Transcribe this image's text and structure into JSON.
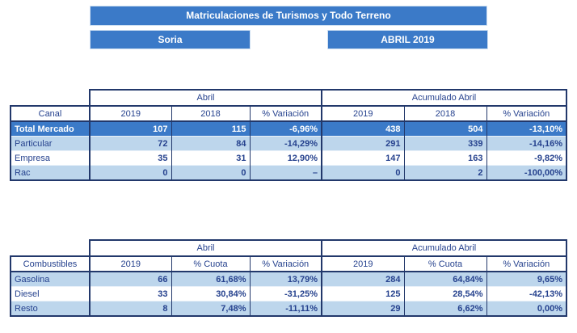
{
  "header": {
    "title": "Matriculaciones de Turismos y Todo Terreno",
    "region": "Soria",
    "period": "ABRIL 2019"
  },
  "colors": {
    "accent_blue": "#3B7AC8",
    "light_blue_row": "#BDD6EC",
    "border_navy": "#22386B",
    "text_navy": "#26428E",
    "total_row_text": "#FFFFFF"
  },
  "tables": [
    {
      "name": "canal",
      "group_headers": [
        "Abril",
        "Acumulado Abril"
      ],
      "col_headers": [
        "Canal",
        "2019",
        "2018",
        "% Variación",
        "2019",
        "2018",
        "% Variación"
      ],
      "rows": [
        {
          "label": "Total Mercado",
          "style": "total",
          "values": [
            "107",
            "115",
            "-6,96%",
            "438",
            "504",
            "-13,10%"
          ]
        },
        {
          "label": "Particular",
          "style": "alt",
          "values": [
            "72",
            "84",
            "-14,29%",
            "291",
            "339",
            "-14,16%"
          ]
        },
        {
          "label": "Empresa",
          "style": "plain",
          "values": [
            "35",
            "31",
            "12,90%",
            "147",
            "163",
            "-9,82%"
          ]
        },
        {
          "label": "Rac",
          "style": "alt",
          "values": [
            "0",
            "0",
            "–",
            "0",
            "2",
            "-100,00%"
          ]
        }
      ]
    },
    {
      "name": "combustibles",
      "group_headers": [
        "Abril",
        "Acumulado Abril"
      ],
      "col_headers": [
        "Combustibles",
        "2019",
        "% Cuota",
        "% Variación",
        "2019",
        "% Cuota",
        "% Variación"
      ],
      "rows": [
        {
          "label": "Gasolina",
          "style": "alt",
          "values": [
            "66",
            "61,68%",
            "13,79%",
            "284",
            "64,84%",
            "9,65%"
          ]
        },
        {
          "label": "Diesel",
          "style": "plain",
          "values": [
            "33",
            "30,84%",
            "-31,25%",
            "125",
            "28,54%",
            "-42,13%"
          ]
        },
        {
          "label": "Resto",
          "style": "alt",
          "values": [
            "8",
            "7,48%",
            "-11,11%",
            "29",
            "6,62%",
            "0,00%"
          ]
        }
      ]
    }
  ]
}
